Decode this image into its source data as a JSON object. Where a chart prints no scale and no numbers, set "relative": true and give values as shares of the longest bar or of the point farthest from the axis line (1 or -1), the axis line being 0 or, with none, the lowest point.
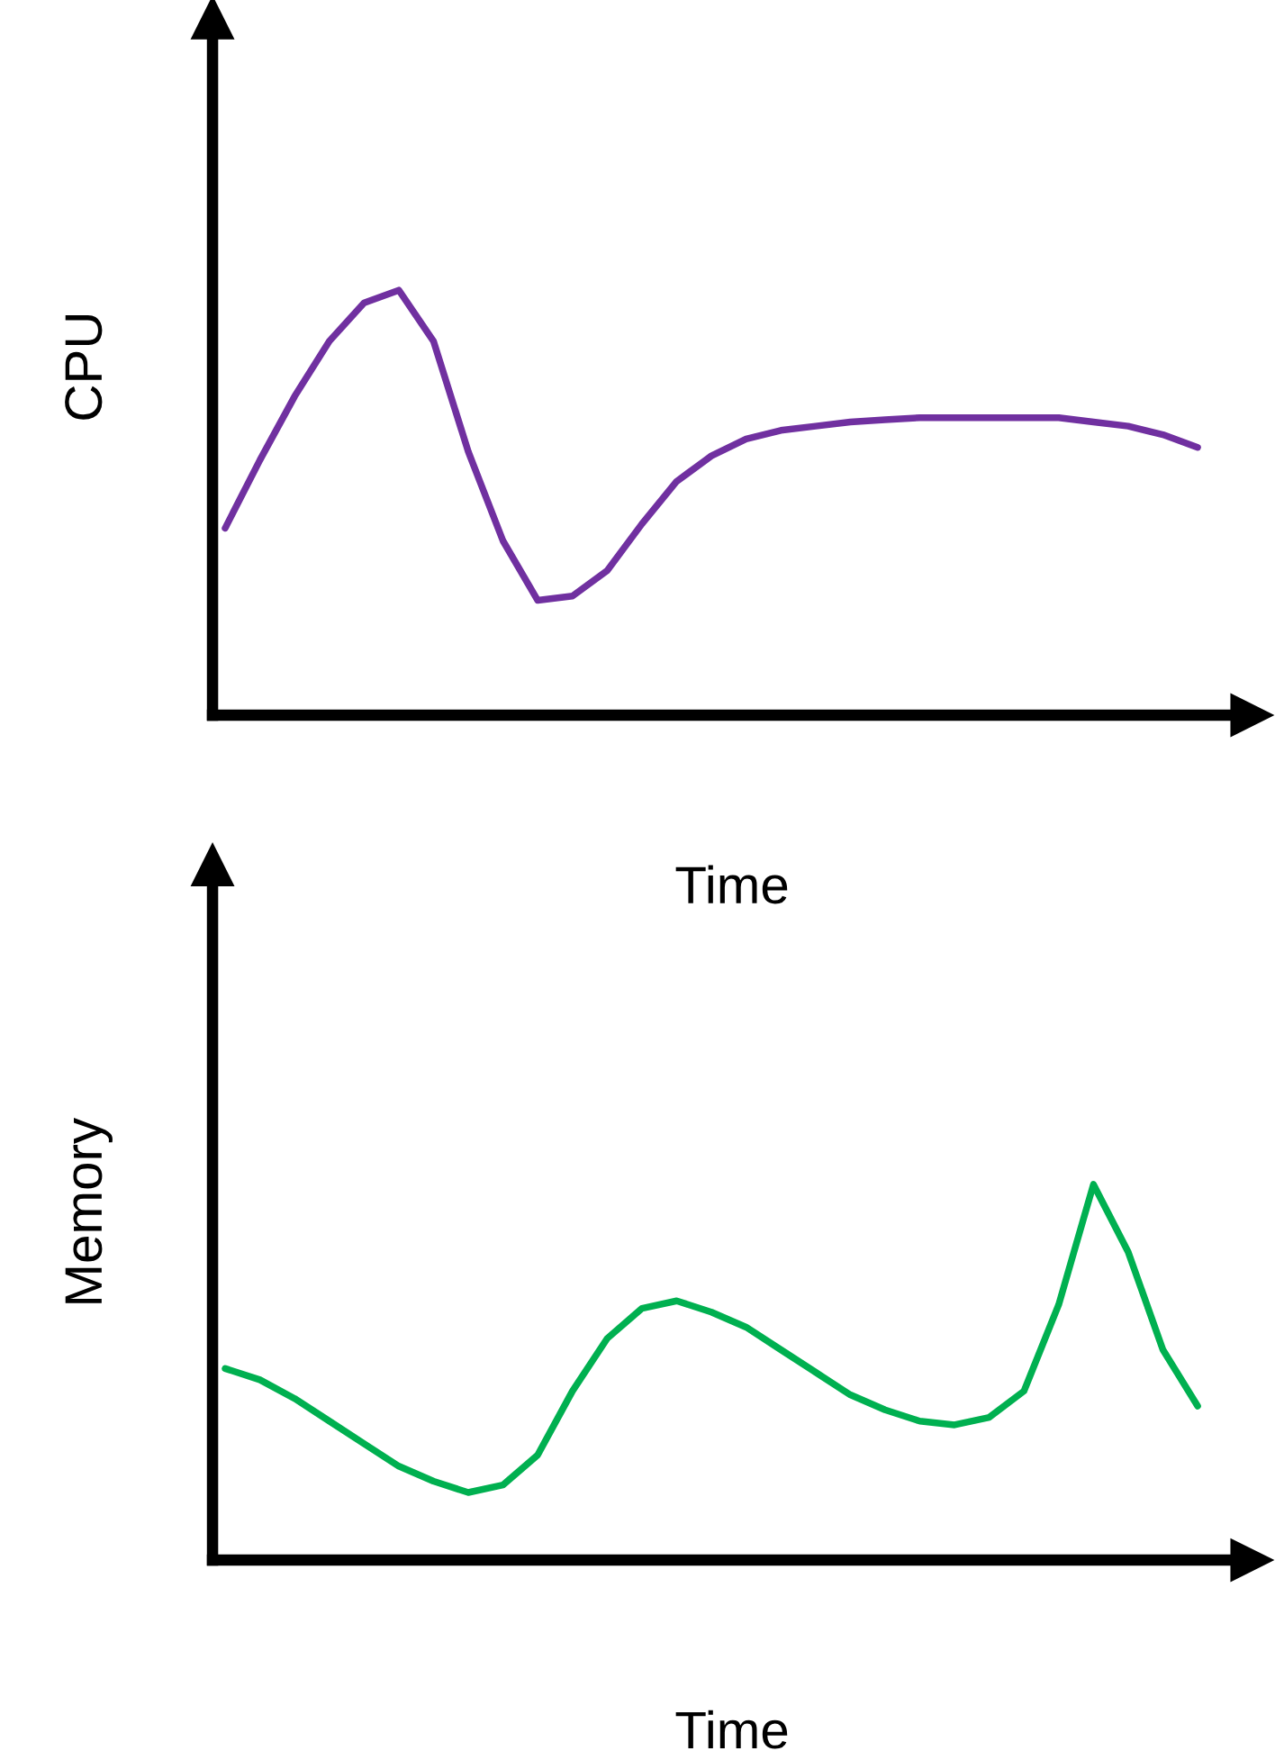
{
  "chart_data": [
    {
      "type": "line",
      "relative": true,
      "xlabel": "Time",
      "ylabel": "CPU",
      "categories": [
        null,
        null,
        null,
        null,
        null,
        null,
        null,
        null,
        null,
        null,
        null,
        null,
        null,
        null,
        null,
        null,
        null,
        null,
        null,
        null,
        null,
        null,
        null,
        null,
        null,
        null,
        null,
        null,
        null
      ],
      "series": [
        {
          "color": "#7030a0",
          "values": [
            0.44,
            0.6,
            0.75,
            0.88,
            0.97,
            1.0,
            0.88,
            0.62,
            0.41,
            0.27,
            0.28,
            0.34,
            0.45,
            0.55,
            0.61,
            0.65,
            0.67,
            0.68,
            0.69,
            0.695,
            0.7,
            0.7,
            0.7,
            0.7,
            0.7,
            0.69,
            0.68,
            0.66,
            0.63
          ]
        }
      ]
    },
    {
      "type": "line",
      "relative": true,
      "xlabel": "Time",
      "ylabel": "Memory",
      "categories": [
        null,
        null,
        null,
        null,
        null,
        null,
        null,
        null,
        null,
        null,
        null,
        null,
        null,
        null,
        null,
        null,
        null,
        null,
        null,
        null,
        null,
        null,
        null,
        null,
        null,
        null,
        null,
        null,
        null
      ],
      "series": [
        {
          "color": "#00b050",
          "values": [
            0.51,
            0.48,
            0.43,
            0.37,
            0.31,
            0.25,
            0.21,
            0.18,
            0.2,
            0.28,
            0.45,
            0.59,
            0.67,
            0.69,
            0.66,
            0.62,
            0.56,
            0.5,
            0.44,
            0.4,
            0.37,
            0.36,
            0.38,
            0.45,
            0.68,
            1.0,
            0.82,
            0.56,
            0.41
          ]
        }
      ]
    }
  ]
}
